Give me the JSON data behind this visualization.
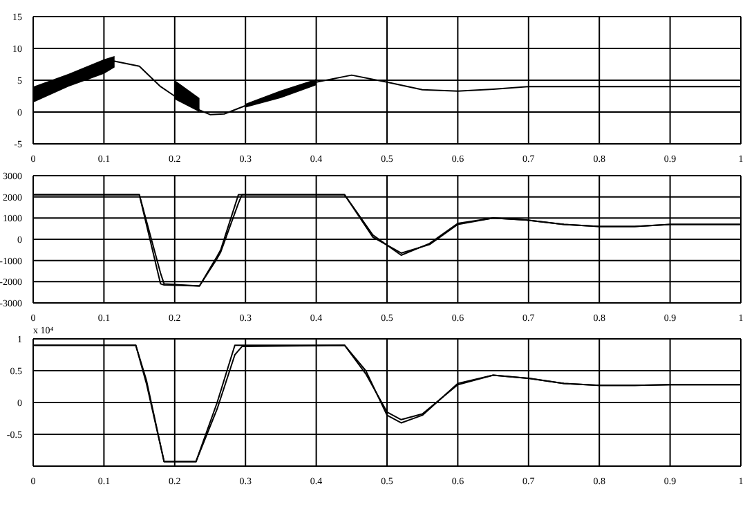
{
  "chart_data": [
    {
      "type": "line",
      "x": [
        0,
        0.05,
        0.1,
        0.115,
        0.15,
        0.18,
        0.2,
        0.235,
        0.25,
        0.27,
        0.3,
        0.35,
        0.4,
        0.45,
        0.5,
        0.55,
        0.6,
        0.65,
        0.7,
        0.8,
        0.9,
        1
      ],
      "series": [
        {
          "color": "#000000",
          "values": [
            3,
            5,
            7,
            8,
            7.2,
            4,
            2.5,
            0.3,
            -0.4,
            -0.3,
            1,
            2.8,
            4.7,
            5.8,
            4.7,
            3.5,
            3.3,
            3.6,
            4,
            4,
            4,
            4
          ],
          "lower": [
            1.5,
            4,
            6,
            7,
            null,
            null,
            2,
            0,
            null,
            null,
            0.7,
            2.2,
            4.2,
            null,
            null,
            null,
            null,
            null,
            null,
            null,
            null,
            null
          ],
          "upper": [
            4,
            6,
            8.3,
            8.8,
            null,
            null,
            5,
            2.2,
            null,
            null,
            1.3,
            3.4,
            5.2,
            null,
            null,
            null,
            null,
            null,
            null,
            null,
            null,
            null
          ]
        }
      ],
      "xlim": [
        0,
        1
      ],
      "xticks": [
        0,
        0.1,
        0.2,
        0.3,
        0.4,
        0.5,
        0.6,
        0.7,
        0.8,
        0.9,
        1
      ],
      "ylim": [
        -5,
        15
      ],
      "yticks": [
        -5,
        0,
        5,
        10,
        15
      ],
      "grid": true
    },
    {
      "type": "line",
      "x": [
        0,
        0.1,
        0.15,
        0.18,
        0.185,
        0.235,
        0.26,
        0.265,
        0.29,
        0.295,
        0.44,
        0.48,
        0.52,
        0.56,
        0.6,
        0.65,
        0.7,
        0.75,
        0.8,
        0.85,
        0.9,
        1
      ],
      "series": [
        {
          "color": "#000000",
          "values": [
            2100,
            2100,
            2100,
            -1600,
            -2100,
            -2200,
            -800,
            -500,
            2100,
            2100,
            2100,
            200,
            -750,
            -200,
            750,
            1000,
            900,
            700,
            600,
            600,
            700,
            700
          ]
        },
        {
          "color": "#000000",
          "values": [
            2100,
            2100,
            2100,
            -2100,
            -2150,
            -2200,
            -900,
            -600,
            1700,
            2100,
            2100,
            100,
            -650,
            -250,
            700,
            1000,
            900,
            700,
            600,
            600,
            700,
            700
          ]
        }
      ],
      "xlim": [
        0,
        1
      ],
      "xticks": [
        0,
        0.1,
        0.2,
        0.3,
        0.4,
        0.5,
        0.6,
        0.7,
        0.8,
        0.9,
        1
      ],
      "ylim": [
        -3000,
        3000
      ],
      "yticks": [
        -3000,
        -2000,
        -1000,
        0,
        1000,
        2000,
        3000
      ],
      "grid": true
    },
    {
      "type": "line",
      "x": [
        0,
        0.145,
        0.16,
        0.185,
        0.23,
        0.26,
        0.285,
        0.295,
        0.44,
        0.47,
        0.5,
        0.52,
        0.55,
        0.6,
        0.65,
        0.7,
        0.75,
        0.8,
        0.85,
        0.9,
        1
      ],
      "series": [
        {
          "color": "#000000",
          "values": [
            0.9,
            0.9,
            0.3,
            -0.93,
            -0.93,
            0,
            0.9,
            0.9,
            0.9,
            0.5,
            -0.2,
            -0.32,
            -0.2,
            0.3,
            0.43,
            0.38,
            0.3,
            0.27,
            0.27,
            0.28,
            0.28
          ]
        },
        {
          "color": "#000000",
          "values": [
            0.9,
            0.9,
            0.35,
            -0.93,
            -0.93,
            -0.1,
            0.75,
            0.88,
            0.9,
            0.45,
            -0.15,
            -0.27,
            -0.18,
            0.28,
            0.43,
            0.38,
            0.3,
            0.27,
            0.27,
            0.28,
            0.28
          ]
        }
      ],
      "xlim": [
        0,
        1
      ],
      "xticks": [
        0,
        0.1,
        0.2,
        0.3,
        0.4,
        0.5,
        0.6,
        0.7,
        0.8,
        0.9,
        1
      ],
      "ylim": [
        -1,
        1
      ],
      "yticks": [
        -0.5,
        0,
        0.5,
        1
      ],
      "grid": true,
      "annotations": [
        "x 10⁴"
      ]
    }
  ]
}
